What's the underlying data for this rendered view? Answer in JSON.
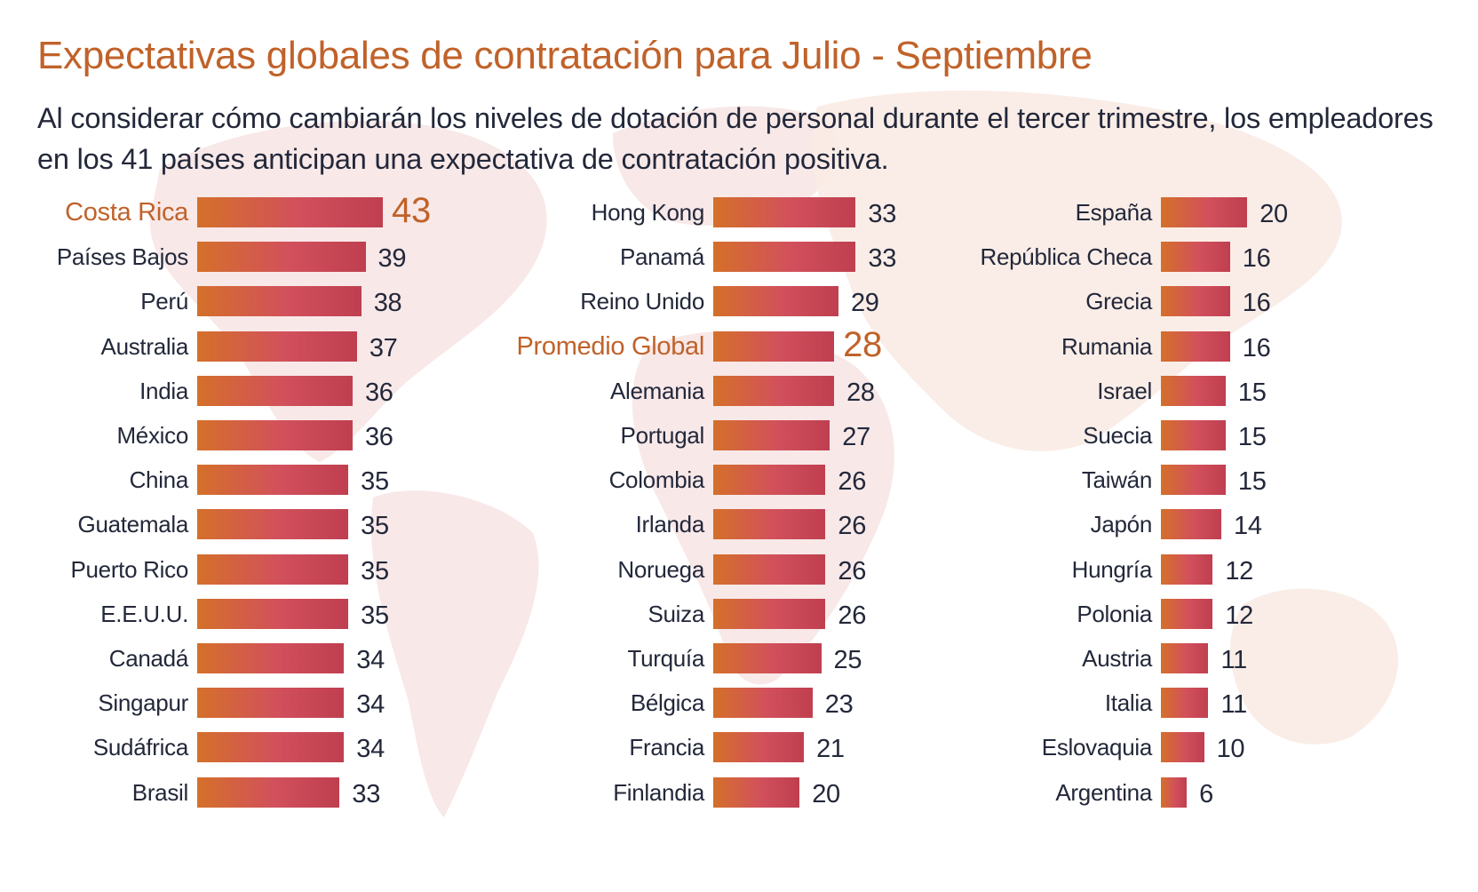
{
  "title": "Expectativas globales de contratación para Julio - Septiembre",
  "subtitle": "Al considerar cómo cambiarán los niveles de dotación de personal durante el tercer trimestre, los empleadores en los 41 países anticipan una expectativa de contratación positiva.",
  "colors": {
    "title": "#c0622a",
    "highlight": "#c0622a",
    "text": "#23283a",
    "bar_start": "#d4702a",
    "bar_mid": "#d2505c",
    "bar_end": "#bf3f50",
    "map": "#f6e3e3"
  },
  "chart_data": {
    "type": "bar",
    "orientation": "horizontal",
    "title": "Expectativas globales de contratación para Julio - Septiembre",
    "xlabel": "",
    "ylabel": "",
    "xlim": [
      0,
      43
    ],
    "grid": false,
    "legend": "none",
    "columns": [
      {
        "items": [
          {
            "label": "Costa Rica",
            "value": 43,
            "highlight": true
          },
          {
            "label": "Países Bajos",
            "value": 39
          },
          {
            "label": "Perú",
            "value": 38
          },
          {
            "label": "Australia",
            "value": 37
          },
          {
            "label": "India",
            "value": 36
          },
          {
            "label": "México",
            "value": 36
          },
          {
            "label": "China",
            "value": 35
          },
          {
            "label": "Guatemala",
            "value": 35
          },
          {
            "label": "Puerto Rico",
            "value": 35
          },
          {
            "label": "E.E.U.U.",
            "value": 35
          },
          {
            "label": "Canadá",
            "value": 34
          },
          {
            "label": "Singapur",
            "value": 34
          },
          {
            "label": "Sudáfrica",
            "value": 34
          },
          {
            "label": "Brasil",
            "value": 33
          }
        ]
      },
      {
        "items": [
          {
            "label": "Hong Kong",
            "value": 33
          },
          {
            "label": "Panamá",
            "value": 33
          },
          {
            "label": "Reino Unido",
            "value": 29
          },
          {
            "label": "Promedio Global",
            "value": 28,
            "highlight": true
          },
          {
            "label": "Alemania",
            "value": 28
          },
          {
            "label": "Portugal",
            "value": 27
          },
          {
            "label": "Colombia",
            "value": 26
          },
          {
            "label": "Irlanda",
            "value": 26
          },
          {
            "label": "Noruega",
            "value": 26
          },
          {
            "label": "Suiza",
            "value": 26
          },
          {
            "label": "Turquía",
            "value": 25
          },
          {
            "label": "Bélgica",
            "value": 23
          },
          {
            "label": "Francia",
            "value": 21
          },
          {
            "label": "Finlandia",
            "value": 20
          }
        ]
      },
      {
        "items": [
          {
            "label": "España",
            "value": 20
          },
          {
            "label": "República Checa",
            "value": 16
          },
          {
            "label": "Grecia",
            "value": 16
          },
          {
            "label": "Rumania",
            "value": 16
          },
          {
            "label": "Israel",
            "value": 15
          },
          {
            "label": "Suecia",
            "value": 15
          },
          {
            "label": "Taiwán",
            "value": 15
          },
          {
            "label": "Japón",
            "value": 14
          },
          {
            "label": "Hungría",
            "value": 12
          },
          {
            "label": "Polonia",
            "value": 12
          },
          {
            "label": "Austria",
            "value": 11
          },
          {
            "label": "Italia",
            "value": 11
          },
          {
            "label": "Eslovaquia",
            "value": 10
          },
          {
            "label": "Argentina",
            "value": 6
          }
        ]
      }
    ]
  }
}
